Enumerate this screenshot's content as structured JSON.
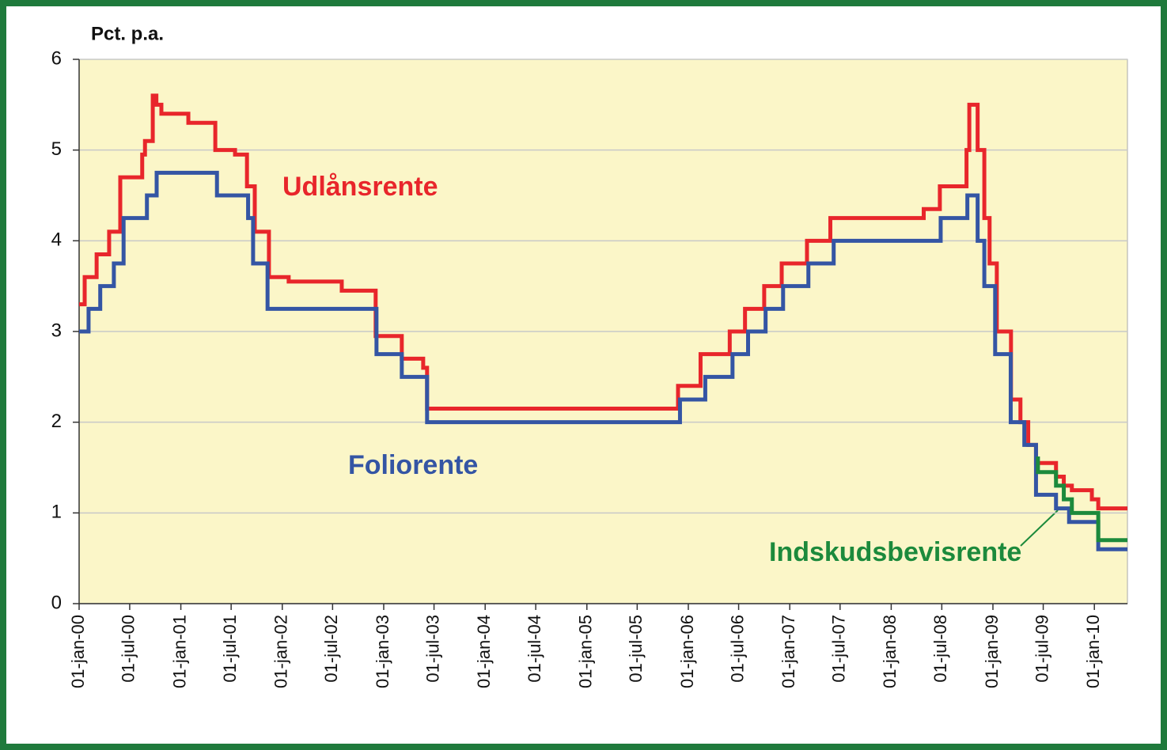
{
  "chart_data": {
    "type": "step",
    "y_label": "Pct. p.a.",
    "xlim": [
      "2000-01-01",
      "2010-04-30"
    ],
    "ylim": [
      0,
      6
    ],
    "yticks": [
      0,
      1,
      2,
      3,
      4,
      5,
      6
    ],
    "grid": true,
    "xticks": [
      {
        "value": "2000-01-01",
        "label": "01-jan-00"
      },
      {
        "value": "2000-07-01",
        "label": "01-jul-00"
      },
      {
        "value": "2001-01-01",
        "label": "01-jan-01"
      },
      {
        "value": "2001-07-01",
        "label": "01-jul-01"
      },
      {
        "value": "2002-01-01",
        "label": "01-jan-02"
      },
      {
        "value": "2002-07-01",
        "label": "01-jul-02"
      },
      {
        "value": "2003-01-01",
        "label": "01-jan-03"
      },
      {
        "value": "2003-07-01",
        "label": "01-jul-03"
      },
      {
        "value": "2004-01-01",
        "label": "01-jan-04"
      },
      {
        "value": "2004-07-01",
        "label": "01-jul-04"
      },
      {
        "value": "2005-01-01",
        "label": "01-jan-05"
      },
      {
        "value": "2005-07-01",
        "label": "01-jul-05"
      },
      {
        "value": "2006-01-01",
        "label": "01-jan-06"
      },
      {
        "value": "2006-07-01",
        "label": "01-jul-06"
      },
      {
        "value": "2007-01-01",
        "label": "01-jan-07"
      },
      {
        "value": "2007-07-01",
        "label": "01-jul-07"
      },
      {
        "value": "2008-01-01",
        "label": "01-jan-08"
      },
      {
        "value": "2008-07-01",
        "label": "01-jul-08"
      },
      {
        "value": "2009-01-01",
        "label": "01-jan-09"
      },
      {
        "value": "2009-07-01",
        "label": "01-jul-09"
      },
      {
        "value": "2010-01-01",
        "label": "01-jan-10"
      }
    ],
    "series": [
      {
        "name": "Udlånsrente",
        "color": "#e8262b",
        "x": [
          "2000-01-01",
          "2000-01-21",
          "2000-03-04",
          "2000-04-18",
          "2000-05-28",
          "2000-08-15",
          "2000-08-25",
          "2000-09-22",
          "2000-10-05",
          "2000-10-23",
          "2001-01-28",
          "2001-05-05",
          "2001-07-15",
          "2001-08-27",
          "2001-09-24",
          "2001-11-14",
          "2002-01-24",
          "2002-08-03",
          "2002-12-03",
          "2003-03-07",
          "2003-05-23",
          "2003-06-06",
          "2005-11-25",
          "2006-02-14",
          "2006-05-30",
          "2006-07-24",
          "2006-10-01",
          "2006-12-03",
          "2007-03-04",
          "2007-05-27",
          "2008-04-27",
          "2008-06-24",
          "2008-09-28",
          "2008-10-08",
          "2008-11-07",
          "2008-12-01",
          "2008-12-20",
          "2009-01-15",
          "2009-03-07",
          "2009-04-10",
          "2009-05-08",
          "2009-06-05",
          "2009-08-16",
          "2009-09-13",
          "2009-10-12",
          "2009-12-23",
          "2010-01-15"
        ],
        "values": [
          3.3,
          3.6,
          3.85,
          4.1,
          4.7,
          4.95,
          5.1,
          5.6,
          5.5,
          5.4,
          5.3,
          5.0,
          4.95,
          4.6,
          4.1,
          3.6,
          3.55,
          3.45,
          2.95,
          2.7,
          2.6,
          2.15,
          2.4,
          2.75,
          3.0,
          3.25,
          3.5,
          3.75,
          4.0,
          4.25,
          4.35,
          4.6,
          5.0,
          5.5,
          5.0,
          4.25,
          3.75,
          3.0,
          2.25,
          2.0,
          1.75,
          1.55,
          1.4,
          1.3,
          1.25,
          1.15,
          1.05
        ]
      },
      {
        "name": "Foliorente",
        "color": "#3455a4",
        "x": [
          "2000-01-01",
          "2000-02-04",
          "2000-03-17",
          "2000-05-05",
          "2000-06-09",
          "2000-09-01",
          "2000-10-06",
          "2001-05-11",
          "2001-08-31",
          "2001-09-18",
          "2001-11-09",
          "2002-12-06",
          "2003-03-07",
          "2003-06-06",
          "2005-12-02",
          "2006-03-03",
          "2006-06-09",
          "2006-08-04",
          "2006-10-06",
          "2006-12-08",
          "2007-03-09",
          "2007-06-08",
          "2008-06-27",
          "2008-10-01",
          "2008-11-07",
          "2008-12-01",
          "2009-01-09",
          "2009-03-06",
          "2009-04-24",
          "2009-06-05",
          "2009-08-16",
          "2009-10-02",
          "2010-01-15"
        ],
        "values": [
          3.0,
          3.25,
          3.5,
          3.75,
          4.25,
          4.5,
          4.75,
          4.5,
          4.25,
          3.75,
          3.25,
          2.75,
          2.5,
          2.0,
          2.25,
          2.5,
          2.75,
          3.0,
          3.25,
          3.5,
          3.75,
          4.0,
          4.25,
          4.5,
          4.0,
          3.5,
          2.75,
          2.0,
          1.75,
          1.2,
          1.05,
          0.9,
          0.6
        ]
      },
      {
        "name": "Indskudsbevisrente",
        "color": "#1c8a3c",
        "x": [
          "2009-06-05",
          "2009-06-12",
          "2009-08-16",
          "2009-09-13",
          "2009-10-12",
          "2010-01-15"
        ],
        "values": [
          1.6,
          1.45,
          1.3,
          1.15,
          1.0,
          0.7
        ]
      }
    ]
  }
}
